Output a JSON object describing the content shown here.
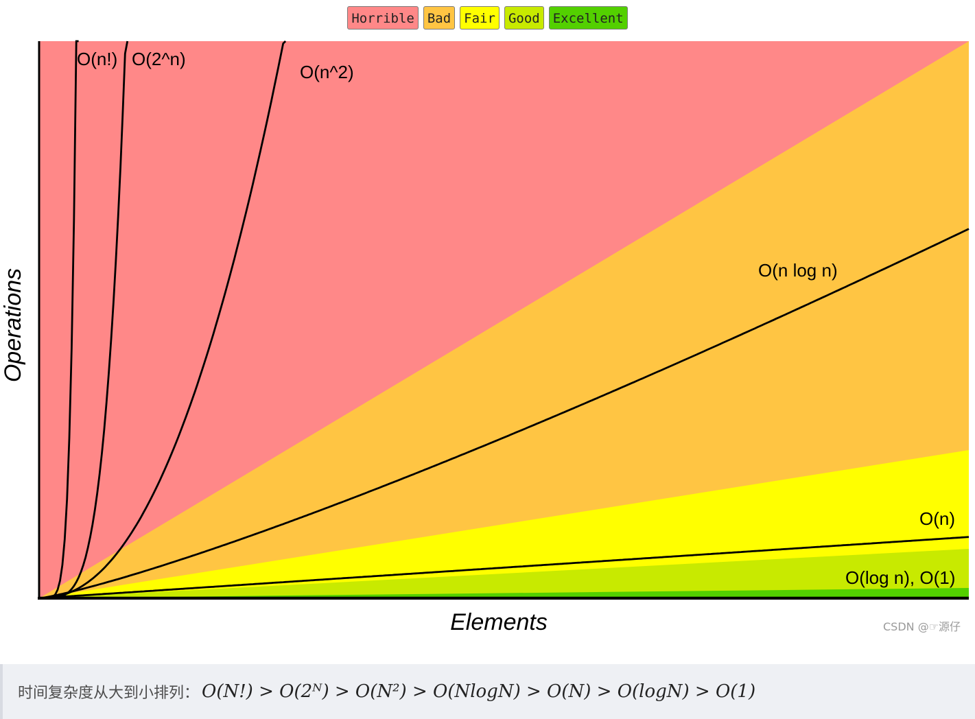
{
  "legend": [
    {
      "label": "Horrible",
      "color": "#ff8888"
    },
    {
      "label": "Bad",
      "color": "#ffc543"
    },
    {
      "label": "Fair",
      "color": "#ffff00"
    },
    {
      "label": "Good",
      "color": "#c8ea00"
    },
    {
      "label": "Excellent",
      "color": "#53d000"
    }
  ],
  "chart_data": {
    "type": "line",
    "xlabel": "Elements",
    "ylabel": "Operations",
    "x_range": [
      0,
      100
    ],
    "y_range": [
      0,
      100
    ],
    "grid": false,
    "legend_placement": "top",
    "regions": [
      {
        "name": "Horrible",
        "color": "#ff8888"
      },
      {
        "name": "Bad",
        "color": "#ffc543"
      },
      {
        "name": "Fair",
        "color": "#ffff00"
      },
      {
        "name": "Good",
        "color": "#c8ea00"
      },
      {
        "name": "Excellent",
        "color": "#53d000"
      }
    ],
    "series": [
      {
        "name": "O(n!)",
        "kind": "factorial"
      },
      {
        "name": "O(2^n)",
        "kind": "exponential"
      },
      {
        "name": "O(n^2)",
        "kind": "quadratic"
      },
      {
        "name": "O(n log n)",
        "kind": "nlogn"
      },
      {
        "name": "O(n)",
        "kind": "linear"
      },
      {
        "name": "O(log n), O(1)",
        "kind": "constant"
      }
    ]
  },
  "watermark": "CSDN @☞源仔",
  "caption": {
    "prefix": "时间复杂度从大到小排列：",
    "formula": "O(N!) > O(2ᴺ) > O(N²) > O(NlogN) > O(N) > O(logN) > O(1)"
  }
}
